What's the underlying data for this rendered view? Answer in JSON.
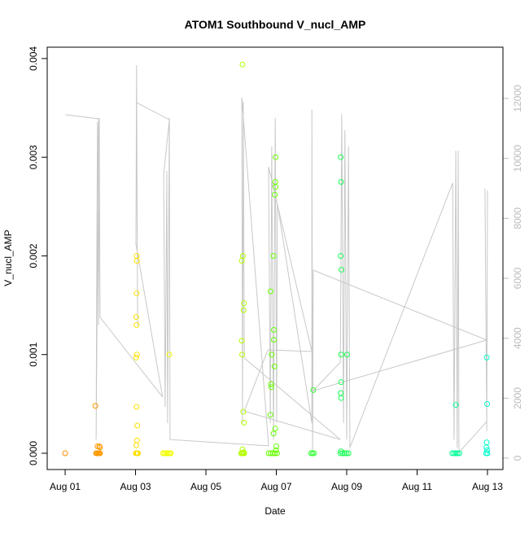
{
  "chart_data": {
    "type": "scatter",
    "title": "ATOM1 Southbound V_nucl_AMP",
    "x_label": "Date",
    "y_label": "V_nucl_AMP",
    "xlim": [
      -0.51,
      12.44
    ],
    "xticks": [
      {
        "value": 0,
        "label": "Aug 01"
      },
      {
        "value": 2,
        "label": "Aug 03"
      },
      {
        "value": 4,
        "label": "Aug 05"
      },
      {
        "value": 6,
        "label": "Aug 07"
      },
      {
        "value": 8,
        "label": "Aug 09"
      },
      {
        "value": 10,
        "label": "Aug 11"
      },
      {
        "value": 12,
        "label": "Aug 13"
      }
    ],
    "ylim": [
      -0.000165,
      0.004115
    ],
    "yticks": [
      {
        "value": 0,
        "label": "0.000"
      },
      {
        "value": 0.001,
        "label": "0.001"
      },
      {
        "value": 0.002,
        "label": "0.002"
      },
      {
        "value": 0.003,
        "label": "0.003"
      },
      {
        "value": 0.004,
        "label": "0.004"
      }
    ],
    "y2lim": [
      -380,
      13710
    ],
    "y2ticks": [
      0,
      2000,
      4000,
      6000,
      8000,
      10000,
      12000
    ],
    "series": [
      {
        "color": "#FF8C00",
        "x": [
          0
        ],
        "values": [
          0
        ]
      },
      {
        "color": "#FF9900",
        "x": [
          0.86,
          0.88,
          0.9,
          0.92,
          0.95,
          0.97,
          0.99,
          0.92,
          0.97,
          0.99
        ],
        "values": [
          0.00048,
          0,
          0,
          0,
          0,
          0,
          0,
          7e-05,
          7e-05,
          6e-05
        ]
      },
      {
        "color": "#FFE000",
        "x": [
          2.03,
          2.04,
          2.03,
          2.02,
          2.03,
          2.04,
          2.02,
          2.03,
          2.05,
          2.04,
          2.02,
          2.03,
          2.01,
          2.05,
          2.07
        ],
        "values": [
          0.002,
          0.00195,
          0.00162,
          0.00138,
          0.0013,
          0.001,
          0.00097,
          0.00047,
          0.00028,
          0.00013,
          8e-05,
          0,
          0,
          0,
          0
        ]
      },
      {
        "color": "#F2FF00",
        "x": [
          2.78,
          2.82,
          2.86,
          2.9,
          2.94,
          2.98,
          3.0,
          2.96
        ],
        "values": [
          0,
          0,
          0,
          0,
          0,
          0,
          0,
          0.001
        ]
      },
      {
        "color": "#B3FF00",
        "x": [
          5.04,
          5.02,
          5.05,
          5.08,
          5.07,
          5.02,
          5.03,
          5.06,
          5.08,
          5.04,
          5.07,
          5.0,
          5.03,
          5.06,
          5.09
        ],
        "values": [
          0.00394,
          0.00195,
          0.002,
          0.00152,
          0.00145,
          0.00114,
          0.001,
          0.00042,
          0.00031,
          4e-05,
          1e-05,
          0,
          0,
          0,
          0
        ]
      },
      {
        "color": "#66FF00",
        "x": [
          5.98,
          5.97,
          5.98,
          5.96,
          5.92,
          5.84,
          5.93,
          5.93,
          5.87,
          5.95,
          5.85,
          5.86,
          5.83,
          5.97,
          5.92,
          6.0,
          5.99,
          5.78,
          5.84,
          5.9,
          5.96,
          6.02
        ],
        "values": [
          0.003,
          0.00275,
          0.0027,
          0.00262,
          0.002,
          0.00164,
          0.00125,
          0.00115,
          0.001,
          0.00088,
          0.0007,
          0.00067,
          0.00039,
          0.00025,
          0.0002,
          7e-05,
          3e-05,
          0,
          0,
          0,
          0,
          0
        ]
      },
      {
        "color": "#33FF33",
        "x": [
          7.05,
          6.99,
          7.03,
          7.07
        ],
        "values": [
          0.00064,
          0,
          0,
          0
        ]
      },
      {
        "color": "#1AFF55",
        "x": [
          7.83,
          7.84,
          7.83,
          7.85,
          7.84,
          8.01,
          7.84,
          7.83,
          7.84,
          7.84,
          7.82,
          7.88,
          7.94,
          8.0,
          8.05
        ],
        "values": [
          0.003,
          0.00275,
          0.002,
          0.00186,
          0.001,
          0.001,
          0.00072,
          0.00061,
          0.00056,
          2e-05,
          0,
          0,
          0,
          0,
          0
        ]
      },
      {
        "color": "#00FF99",
        "x": [
          11.1,
          11.0,
          11.05,
          11.1,
          11.15,
          11.2
        ],
        "values": [
          0.00049,
          0,
          0,
          0,
          0,
          0
        ]
      },
      {
        "color": "#00FFCC",
        "x": [
          11.98,
          11.99,
          11.98,
          11.97,
          11.99,
          11.96,
          12.0
        ],
        "values": [
          0.00097,
          0.0005,
          0.00011,
          6e-05,
          3e-05,
          0,
          0
        ]
      },
      {
        "type": "line",
        "axis": "y2",
        "color": "#C8C8C8",
        "x": [
          0,
          0.95,
          0.88,
          0.9,
          0.92,
          0.95,
          0.97,
          0.99,
          2.77,
          2.01,
          2.03,
          2.06,
          2.03,
          2.96,
          2.8,
          2.84,
          2.89,
          2.91,
          2.96,
          2.98,
          5.78,
          5.02,
          5.04,
          5.06,
          5.09,
          7.82,
          5.09,
          5.76,
          7.01,
          5.78,
          5.83,
          5.87,
          5.92,
          5.97,
          6.01,
          6.03,
          7.01,
          7.01,
          7.03,
          7.05,
          11.98,
          7.05,
          7.82,
          7.86,
          7.91,
          7.95,
          8.0,
          8.05,
          8.09,
          11.01,
          11.05,
          11.1,
          11.14,
          11.17,
          11.19,
          11.98,
          11.93,
          11.98,
          12.0
        ],
        "values": [
          11460,
          11320,
          620,
          7140,
          11210,
          4430,
          11350,
          4700,
          2040,
          7140,
          13110,
          4430,
          11860,
          11290,
          9450,
          1710,
          9580,
          1170,
          11350,
          620,
          410,
          12030,
          1170,
          11890,
          3340,
          620,
          1570,
          3610,
          3560,
          9720,
          1170,
          10400,
          620,
          11350,
          1170,
          8500,
          1170,
          11620,
          220,
          6270,
          3940,
          2250,
          3200,
          11480,
          1170,
          10940,
          620,
          10400,
          350,
          9180,
          620,
          10260,
          350,
          10260,
          190,
          1220,
          8990,
          900,
          8930
        ]
      }
    ]
  }
}
